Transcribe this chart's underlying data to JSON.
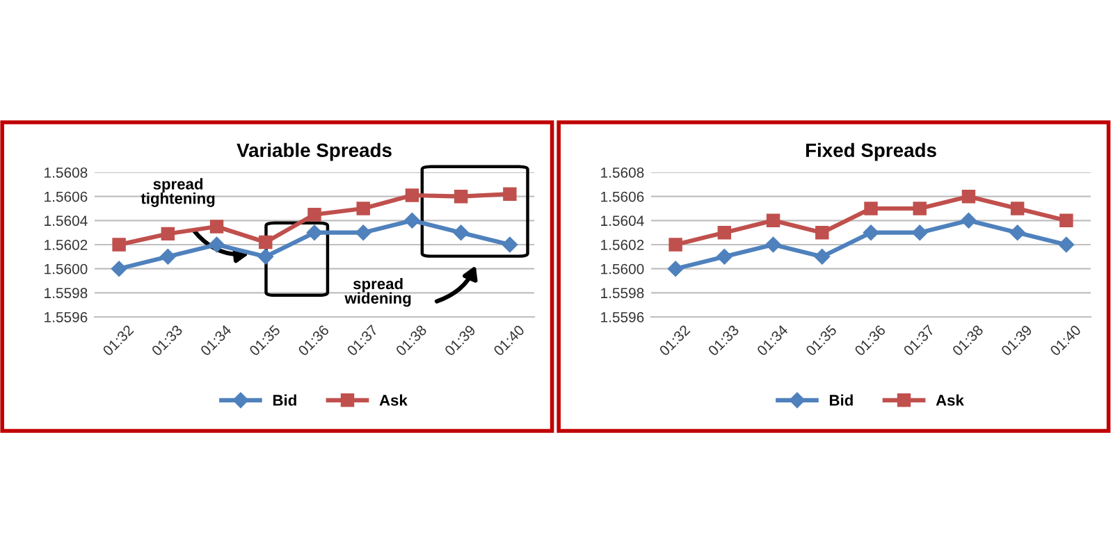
{
  "chart_data": [
    {
      "type": "line",
      "title": "Variable Spreads",
      "categories": [
        "01:32",
        "01:33",
        "01:34",
        "01:35",
        "01:36",
        "01:37",
        "01:38",
        "01:39",
        "01:40"
      ],
      "series": [
        {
          "name": "Bid",
          "color": "#4f81bd",
          "marker": "diamond",
          "values": [
            1.56,
            1.5601,
            1.5602,
            1.5601,
            1.5603,
            1.5603,
            1.5604,
            1.5603,
            1.5602
          ]
        },
        {
          "name": "Ask",
          "color": "#c0504d",
          "marker": "square",
          "values": [
            1.5602,
            1.56029,
            1.56035,
            1.56022,
            1.56045,
            1.5605,
            1.56061,
            1.5606,
            1.56062
          ]
        }
      ],
      "ylim": [
        1.5596,
        1.5608
      ],
      "yticks": [
        {
          "value": 1.5596,
          "label": "1.5596"
        },
        {
          "value": 1.5598,
          "label": "1.5598"
        },
        {
          "value": 1.56,
          "label": "1.5600"
        },
        {
          "value": 1.5602,
          "label": "1.5602"
        },
        {
          "value": 1.5604,
          "label": "1.5604"
        },
        {
          "value": 1.5606,
          "label": "1.5606"
        },
        {
          "value": 1.5608,
          "label": "1.5608"
        }
      ],
      "grid": "y",
      "legend": "bottom",
      "annotations": [
        "spread\ntightening",
        "spread\nwidening"
      ]
    },
    {
      "type": "line",
      "title": "Fixed Spreads",
      "categories": [
        "01:32",
        "01:33",
        "01:34",
        "01:35",
        "01:36",
        "01:37",
        "01:38",
        "01:39",
        "01:40"
      ],
      "series": [
        {
          "name": "Bid",
          "color": "#4f81bd",
          "marker": "diamond",
          "values": [
            1.56,
            1.5601,
            1.5602,
            1.5601,
            1.5603,
            1.5603,
            1.5604,
            1.5603,
            1.5602
          ]
        },
        {
          "name": "Ask",
          "color": "#c0504d",
          "marker": "square",
          "values": [
            1.5602,
            1.5603,
            1.5604,
            1.5603,
            1.5605,
            1.5605,
            1.5606,
            1.5605,
            1.5604
          ]
        }
      ],
      "ylim": [
        1.5596,
        1.5608
      ],
      "yticks": [
        {
          "value": 1.5596,
          "label": "1.5596"
        },
        {
          "value": 1.5598,
          "label": "1.5598"
        },
        {
          "value": 1.56,
          "label": "1.5600"
        },
        {
          "value": 1.5602,
          "label": "1.5602"
        },
        {
          "value": 1.5604,
          "label": "1.5604"
        },
        {
          "value": 1.5606,
          "label": "1.5606"
        },
        {
          "value": 1.5608,
          "label": "1.5608"
        }
      ],
      "grid": "y",
      "legend": "bottom"
    }
  ]
}
